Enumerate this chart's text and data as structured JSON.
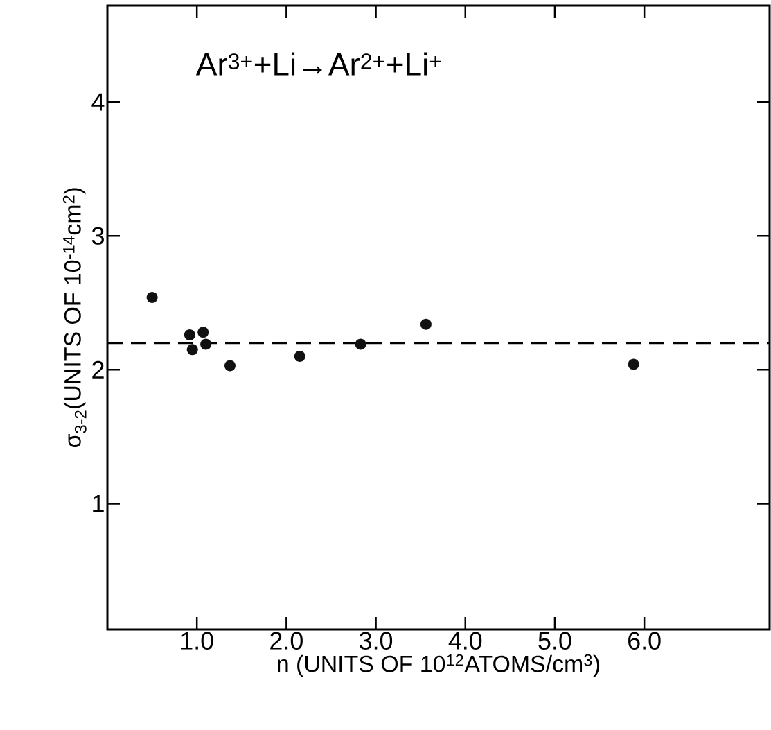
{
  "chart_data": {
    "type": "scatter",
    "title": "Ar$^{3+}$+Li→Ar$^{2+}$+Li$^{+}$",
    "xlabel": "n (UNITS OF 10$^{12}$ATOMS/cm$^{3}$)",
    "ylabel": "σ$_{3-2}$(UNITS OF 10$^{-14}$cm$^{2}$)",
    "x": [
      0.5,
      0.92,
      0.95,
      1.07,
      1.1,
      1.37,
      2.15,
      2.83,
      3.56,
      5.88
    ],
    "values": [
      2.54,
      2.26,
      2.15,
      2.28,
      2.19,
      2.03,
      2.1,
      2.19,
      2.34,
      2.04
    ],
    "color": "#111111",
    "marker": "circle",
    "xlim": [
      0,
      7.4
    ],
    "ylim": [
      0.06,
      4.72
    ],
    "xticks": [
      {
        "value": 1,
        "label": "1.0"
      },
      {
        "value": 2,
        "label": "2.0"
      },
      {
        "value": 3,
        "label": "3.0"
      },
      {
        "value": 4,
        "label": "4.0"
      },
      {
        "value": 5,
        "label": "5.0"
      },
      {
        "value": 6,
        "label": "6.0"
      }
    ],
    "yticks": [
      1,
      2,
      3,
      4
    ],
    "ref_lines": [
      {
        "axis": "y",
        "value": 2.2,
        "line_style": "dashed"
      }
    ]
  }
}
